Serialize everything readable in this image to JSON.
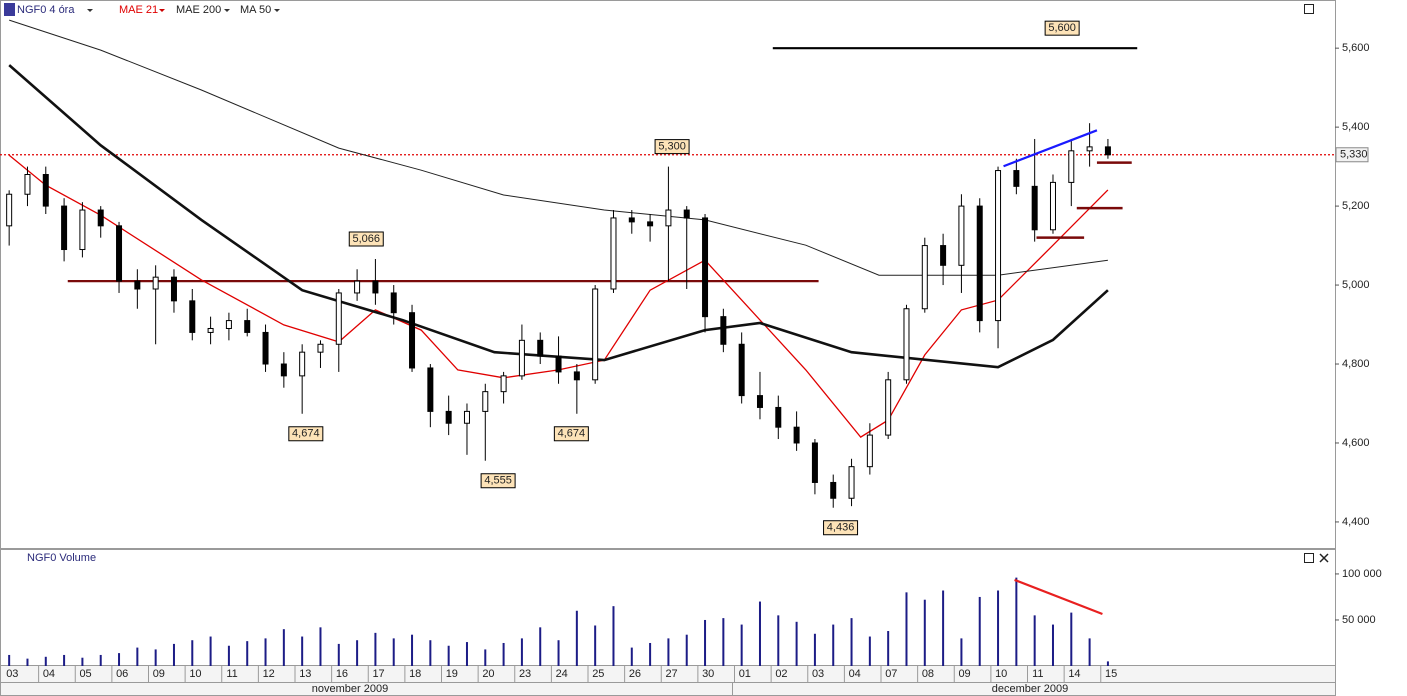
{
  "chart_data": {
    "type": "candlestick",
    "title": "NGF0 4 óra",
    "volume_title": "NGF0 Volume",
    "categories": [
      "03",
      "04",
      "05",
      "06",
      "09",
      "10",
      "11",
      "12",
      "13",
      "16",
      "17",
      "18",
      "19",
      "20",
      "23",
      "24",
      "25",
      "26",
      "27",
      "30",
      "01",
      "02",
      "03",
      "04",
      "07",
      "08",
      "09",
      "10",
      "11",
      "14",
      "15"
    ],
    "months": [
      "november 2009",
      "december 2009"
    ],
    "xlim": [
      -0.5,
      72.4
    ],
    "ylim": [
      4334,
      5722
    ],
    "yticks": [
      {
        "value": 4400,
        "label": "4,400"
      },
      {
        "value": 4600,
        "label": "4,600"
      },
      {
        "value": 4800,
        "label": "4,800"
      },
      {
        "value": 5000,
        "label": "5,000"
      },
      {
        "value": 5200,
        "label": "5,200"
      },
      {
        "value": 5400,
        "label": "5,400"
      },
      {
        "value": 5600,
        "label": "5,600"
      }
    ],
    "candles": [
      [
        5150,
        5240,
        5100,
        5230
      ],
      [
        5230,
        5300,
        5200,
        5280
      ],
      [
        5280,
        5300,
        5180,
        5200
      ],
      [
        5200,
        5220,
        5060,
        5090
      ],
      [
        5090,
        5210,
        5070,
        5190
      ],
      [
        5190,
        5200,
        5120,
        5150
      ],
      [
        5150,
        5160,
        4980,
        5010
      ],
      [
        5010,
        5040,
        4940,
        4990
      ],
      [
        4990,
        5050,
        4850,
        5020
      ],
      [
        5020,
        5040,
        4930,
        4960
      ],
      [
        4960,
        4990,
        4860,
        4880
      ],
      [
        4880,
        4920,
        4850,
        4890
      ],
      [
        4890,
        4930,
        4860,
        4910
      ],
      [
        4910,
        4940,
        4870,
        4880
      ],
      [
        4880,
        4900,
        4780,
        4800
      ],
      [
        4800,
        4830,
        4740,
        4770
      ],
      [
        4770,
        4850,
        4674,
        4830
      ],
      [
        4830,
        4860,
        4790,
        4850
      ],
      [
        4850,
        4990,
        4780,
        4980
      ],
      [
        4980,
        5040,
        4960,
        5010
      ],
      [
        5010,
        5066,
        4950,
        4980
      ],
      [
        4980,
        5000,
        4900,
        4930
      ],
      [
        4930,
        4950,
        4780,
        4790
      ],
      [
        4790,
        4800,
        4640,
        4680
      ],
      [
        4680,
        4720,
        4620,
        4650
      ],
      [
        4650,
        4700,
        4570,
        4680
      ],
      [
        4680,
        4750,
        4555,
        4730
      ],
      [
        4730,
        4780,
        4700,
        4770
      ],
      [
        4770,
        4900,
        4760,
        4860
      ],
      [
        4860,
        4880,
        4800,
        4820
      ],
      [
        4820,
        4870,
        4750,
        4780
      ],
      [
        4780,
        4800,
        4674,
        4760
      ],
      [
        4760,
        5000,
        4750,
        4990
      ],
      [
        4990,
        5190,
        4980,
        5170
      ],
      [
        5170,
        5190,
        5130,
        5160
      ],
      [
        5160,
        5180,
        5110,
        5150
      ],
      [
        5150,
        5300,
        5010,
        5190
      ],
      [
        5190,
        5200,
        4990,
        5170
      ],
      [
        5170,
        5180,
        4880,
        4920
      ],
      [
        4920,
        4940,
        4830,
        4850
      ],
      [
        4850,
        4880,
        4700,
        4720
      ],
      [
        4720,
        4780,
        4660,
        4690
      ],
      [
        4690,
        4720,
        4610,
        4640
      ],
      [
        4640,
        4680,
        4580,
        4600
      ],
      [
        4600,
        4610,
        4470,
        4500
      ],
      [
        4500,
        4520,
        4436,
        4460
      ],
      [
        4460,
        4560,
        4440,
        4540
      ],
      [
        4540,
        4650,
        4520,
        4620
      ],
      [
        4620,
        4780,
        4610,
        4760
      ],
      [
        4760,
        4950,
        4750,
        4940
      ],
      [
        4940,
        5120,
        4930,
        5100
      ],
      [
        5100,
        5130,
        5000,
        5050
      ],
      [
        5050,
        5230,
        4980,
        5200
      ],
      [
        5200,
        5220,
        4880,
        4910
      ],
      [
        4910,
        5300,
        4840,
        5290
      ],
      [
        5290,
        5320,
        5230,
        5250
      ],
      [
        5250,
        5370,
        5110,
        5140
      ],
      [
        5140,
        5280,
        5130,
        5260
      ],
      [
        5260,
        5370,
        5200,
        5340
      ],
      [
        5340,
        5410,
        5300,
        5350
      ],
      [
        5350,
        5370,
        5320,
        5330
      ]
    ],
    "series": [
      {
        "name": "MAE 21",
        "color": "#e00000",
        "width": 1.3,
        "x": [
          0,
          2,
          5,
          10.5,
          15,
          18,
          20,
          22.5,
          24.5,
          27,
          30,
          32.5,
          35,
          38,
          40,
          43.5,
          46.5,
          48,
          50,
          52,
          54,
          57,
          60
        ],
        "values": [
          5329,
          5253,
          5177,
          5013,
          4899,
          4856,
          4937,
          4886,
          4785,
          4765,
          4785,
          4810,
          4987,
          5063,
          4962,
          4785,
          4615,
          4658,
          4823,
          4937,
          4962,
          5101,
          5241
        ]
      },
      {
        "name": "MAE 200",
        "color": "#222222",
        "width": 1,
        "x": [
          0,
          5,
          10.5,
          18,
          22.5,
          27,
          32.5,
          38,
          43.5,
          47.5,
          51.5,
          54,
          60
        ],
        "values": [
          5671,
          5595,
          5494,
          5347,
          5291,
          5228,
          5190,
          5165,
          5101,
          5025,
          5025,
          5025,
          5063
        ]
      },
      {
        "name": "MA 50",
        "color": "#111111",
        "width": 2.6,
        "x": [
          0,
          5,
          10.5,
          16,
          21.5,
          26.5,
          32.5,
          38,
          41,
          46,
          54,
          57,
          60
        ],
        "values": [
          5557,
          5354,
          5165,
          4987,
          4911,
          4830,
          4810,
          4886,
          4904,
          4830,
          4792,
          4861,
          4987
        ]
      }
    ],
    "trendlines": [
      {
        "color": "#000000",
        "width": 2.2,
        "x": [
          41.7,
          61.6
        ],
        "values": [
          5600,
          5600
        ]
      },
      {
        "color": "#7a0a0a",
        "width": 2.2,
        "x": [
          3.2,
          44.2
        ],
        "values": [
          5010,
          5010
        ]
      },
      {
        "color": "#1a1aff",
        "width": 2.2,
        "x": [
          54.3,
          59.4
        ],
        "values": [
          5301,
          5392
        ]
      },
      {
        "color": "#7a0a0a",
        "width": 2.5,
        "x": [
          59.4,
          61.3
        ],
        "values": [
          5310,
          5310
        ]
      },
      {
        "color": "#7a0a0a",
        "width": 2.5,
        "x": [
          58.3,
          60.8
        ],
        "values": [
          5195,
          5195
        ]
      },
      {
        "color": "#7a0a0a",
        "width": 2.5,
        "x": [
          56.1,
          58.7
        ],
        "values": [
          5120,
          5120
        ]
      }
    ],
    "callouts": [
      {
        "label": "5,600",
        "value": 5600,
        "x": 57.5,
        "position": "above"
      },
      {
        "label": "5,300",
        "value": 5300,
        "x": 36.2,
        "position": "above"
      },
      {
        "label": "5,066",
        "value": 5066,
        "x": 19.5,
        "position": "above"
      },
      {
        "label": "4,674",
        "value": 4674,
        "x": 16.2,
        "position": "below"
      },
      {
        "label": "4,555",
        "value": 4555,
        "x": 26.7,
        "position": "below"
      },
      {
        "label": "4,674",
        "value": 4674,
        "x": 30.7,
        "position": "below"
      },
      {
        "label": "4,436",
        "value": 4436,
        "x": 45.4,
        "position": "below"
      }
    ],
    "last_price": {
      "value": 5330,
      "label": "5,330",
      "color": "#e00000"
    },
    "volume": {
      "color": "#1c1c86",
      "ylim": [
        0,
        126000
      ],
      "yticks": [
        {
          "value": 50000,
          "label": "50 000"
        },
        {
          "value": 100000,
          "label": "100 000"
        }
      ],
      "values": [
        12000,
        8000,
        10000,
        12000,
        9000,
        12000,
        14000,
        20000,
        18000,
        24000,
        28000,
        32000,
        22000,
        27000,
        30000,
        40000,
        32000,
        42000,
        24000,
        28000,
        36000,
        30000,
        34000,
        28000,
        22000,
        26000,
        18000,
        25000,
        30000,
        42000,
        28000,
        60000,
        44000,
        65000,
        20000,
        25000,
        30000,
        34000,
        50000,
        52000,
        45000,
        70000,
        55000,
        48000,
        35000,
        45000,
        52000,
        32000,
        38000,
        80000,
        72000,
        82000,
        30000,
        75000,
        82000,
        96000,
        55000,
        45000,
        58000,
        30000,
        5000
      ],
      "trendline": {
        "color": "#e82020",
        "width": 2.2,
        "x": [
          54.9,
          59.7
        ],
        "values": [
          93500,
          56500
        ]
      }
    }
  }
}
